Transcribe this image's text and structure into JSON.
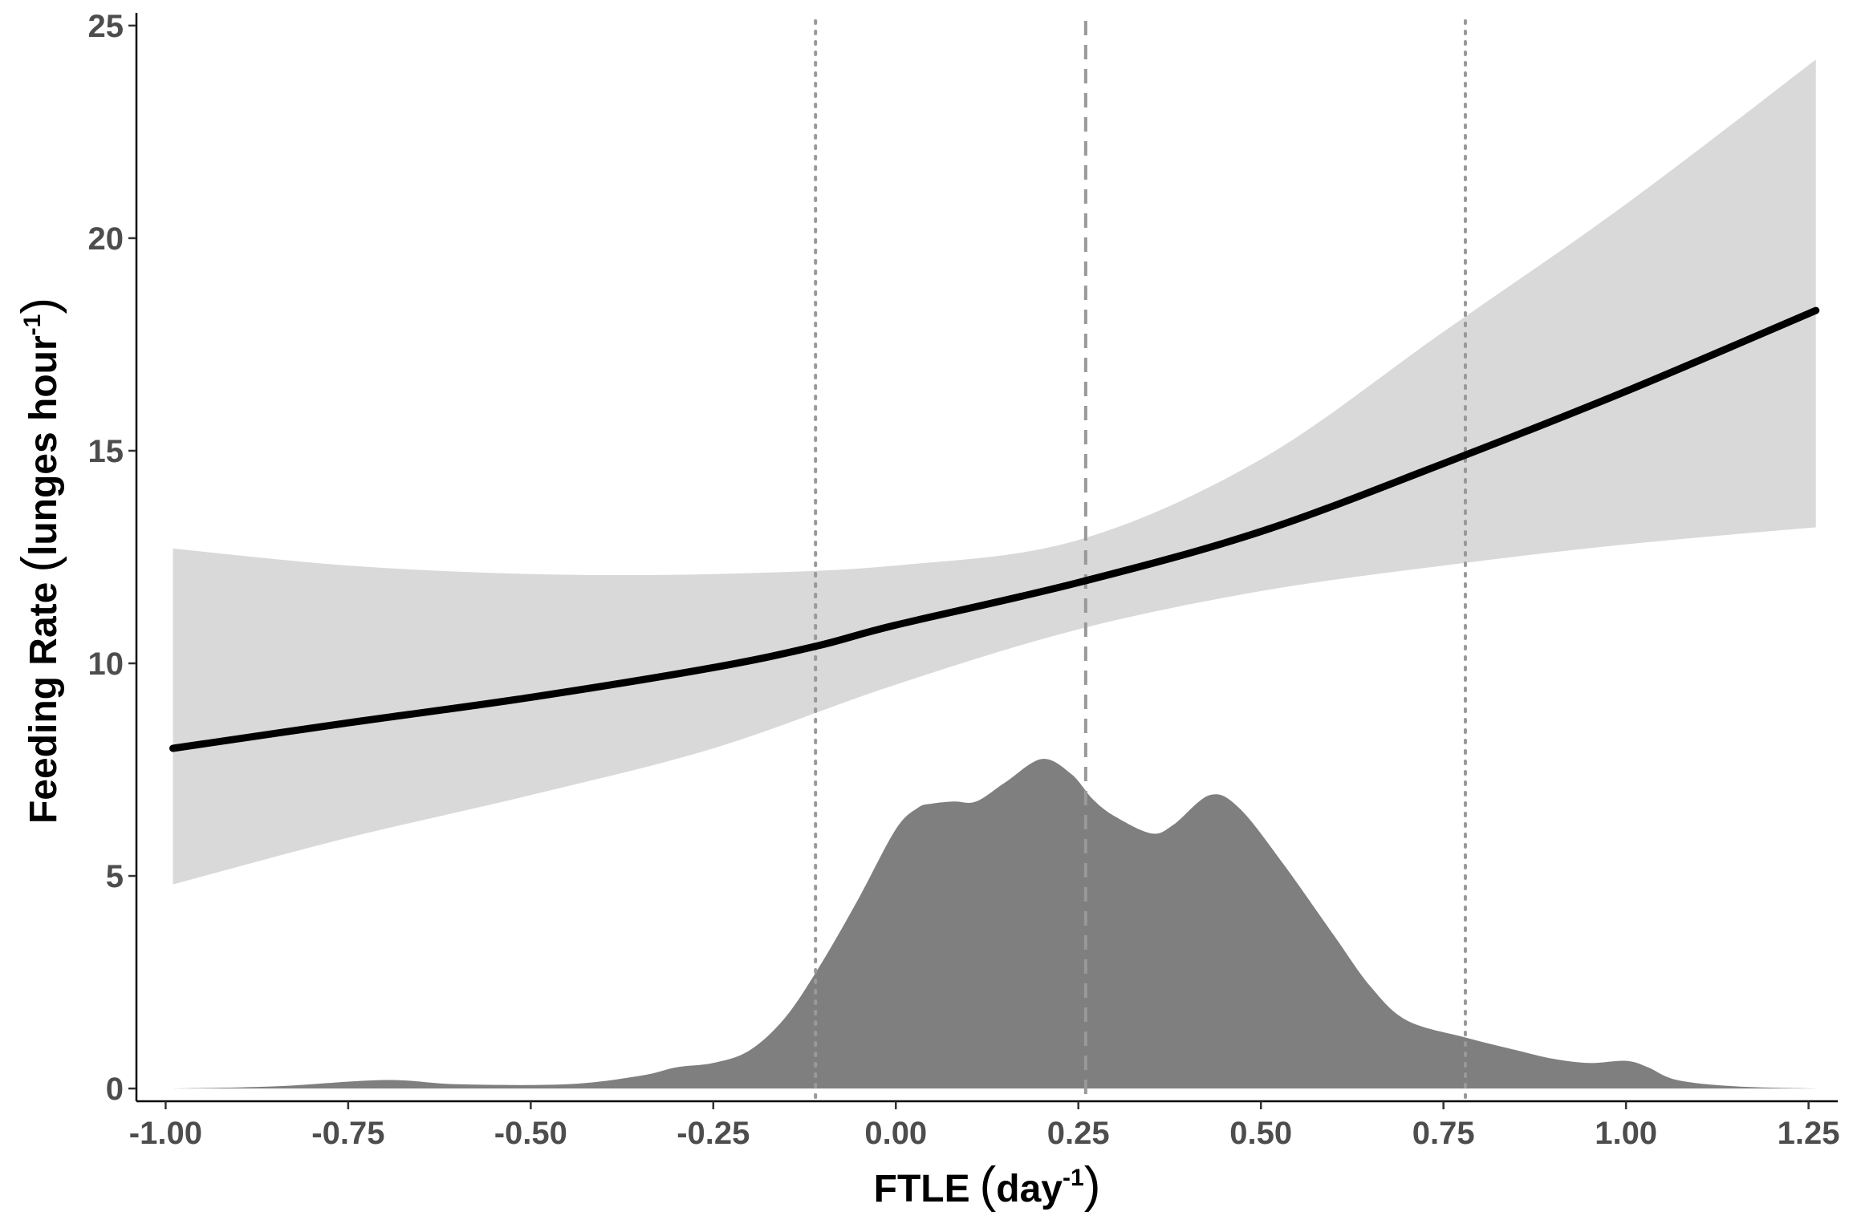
{
  "chart_data": {
    "type": "line",
    "title": "",
    "xlabel": {
      "main": "FTLE",
      "unit": "day",
      "exponent": "-1"
    },
    "ylabel": {
      "main": "Feeding Rate",
      "unit": "lunges hour",
      "exponent": "-1"
    },
    "xlim": [
      -1.04,
      1.29
    ],
    "ylim": [
      -0.3,
      25.3
    ],
    "x_ticks": [
      -1.0,
      -0.75,
      -0.5,
      -0.25,
      0.0,
      0.25,
      0.5,
      0.75,
      1.0,
      1.25
    ],
    "x_tick_labels": [
      "-1.00",
      "-0.75",
      "-0.50",
      "-0.25",
      "0.00",
      "0.25",
      "0.50",
      "0.75",
      "1.00",
      "1.25"
    ],
    "y_ticks": [
      0,
      5,
      10,
      15,
      20,
      25
    ],
    "y_tick_labels": [
      "0",
      "5",
      "10",
      "15",
      "20",
      "25"
    ],
    "grid": false,
    "legend": "none",
    "series": [
      {
        "kind": "fit_line",
        "color": "#000000",
        "x": [
          -0.99,
          -0.75,
          -0.5,
          -0.25,
          -0.11,
          0.0,
          0.25,
          0.5,
          0.75,
          1.0,
          1.26
        ],
        "y": [
          8.0,
          8.6,
          9.2,
          9.9,
          10.4,
          10.9,
          11.9,
          13.1,
          14.7,
          16.4,
          18.3
        ]
      },
      {
        "kind": "confidence_band",
        "color": "#d9d9d9",
        "x": [
          -0.99,
          -0.75,
          -0.5,
          -0.25,
          0.0,
          0.25,
          0.5,
          0.75,
          1.0,
          1.26
        ],
        "upper": [
          12.7,
          12.3,
          12.1,
          12.1,
          12.3,
          12.9,
          14.8,
          17.8,
          20.8,
          24.2
        ],
        "lower": [
          4.8,
          5.9,
          6.9,
          8.0,
          9.5,
          10.8,
          11.7,
          12.3,
          12.8,
          13.2
        ]
      },
      {
        "kind": "density",
        "color": "#7f7f7f",
        "x": [
          -0.99,
          -0.85,
          -0.7,
          -0.6,
          -0.45,
          -0.35,
          -0.3,
          -0.25,
          -0.2,
          -0.15,
          -0.1,
          -0.05,
          0.0,
          0.03,
          0.05,
          0.08,
          0.11,
          0.15,
          0.2,
          0.24,
          0.27,
          0.3,
          0.35,
          0.38,
          0.43,
          0.47,
          0.53,
          0.6,
          0.65,
          0.7,
          0.78,
          0.85,
          0.9,
          0.95,
          1.0,
          1.03,
          1.07,
          1.15,
          1.26
        ],
        "y": [
          0.0,
          0.05,
          0.2,
          0.1,
          0.1,
          0.3,
          0.5,
          0.6,
          0.9,
          1.7,
          3.0,
          4.5,
          6.1,
          6.6,
          6.7,
          6.75,
          6.75,
          7.2,
          7.75,
          7.4,
          6.8,
          6.4,
          6.0,
          6.2,
          6.9,
          6.6,
          5.3,
          3.6,
          2.4,
          1.6,
          1.2,
          0.9,
          0.7,
          0.6,
          0.65,
          0.5,
          0.2,
          0.05,
          0.0
        ]
      }
    ],
    "reference_lines": [
      {
        "x": -0.11,
        "style": "dotted",
        "color": "#999999"
      },
      {
        "x": 0.26,
        "style": "dashed",
        "color": "#999999"
      },
      {
        "x": 0.78,
        "style": "dotted",
        "color": "#999999"
      }
    ]
  }
}
